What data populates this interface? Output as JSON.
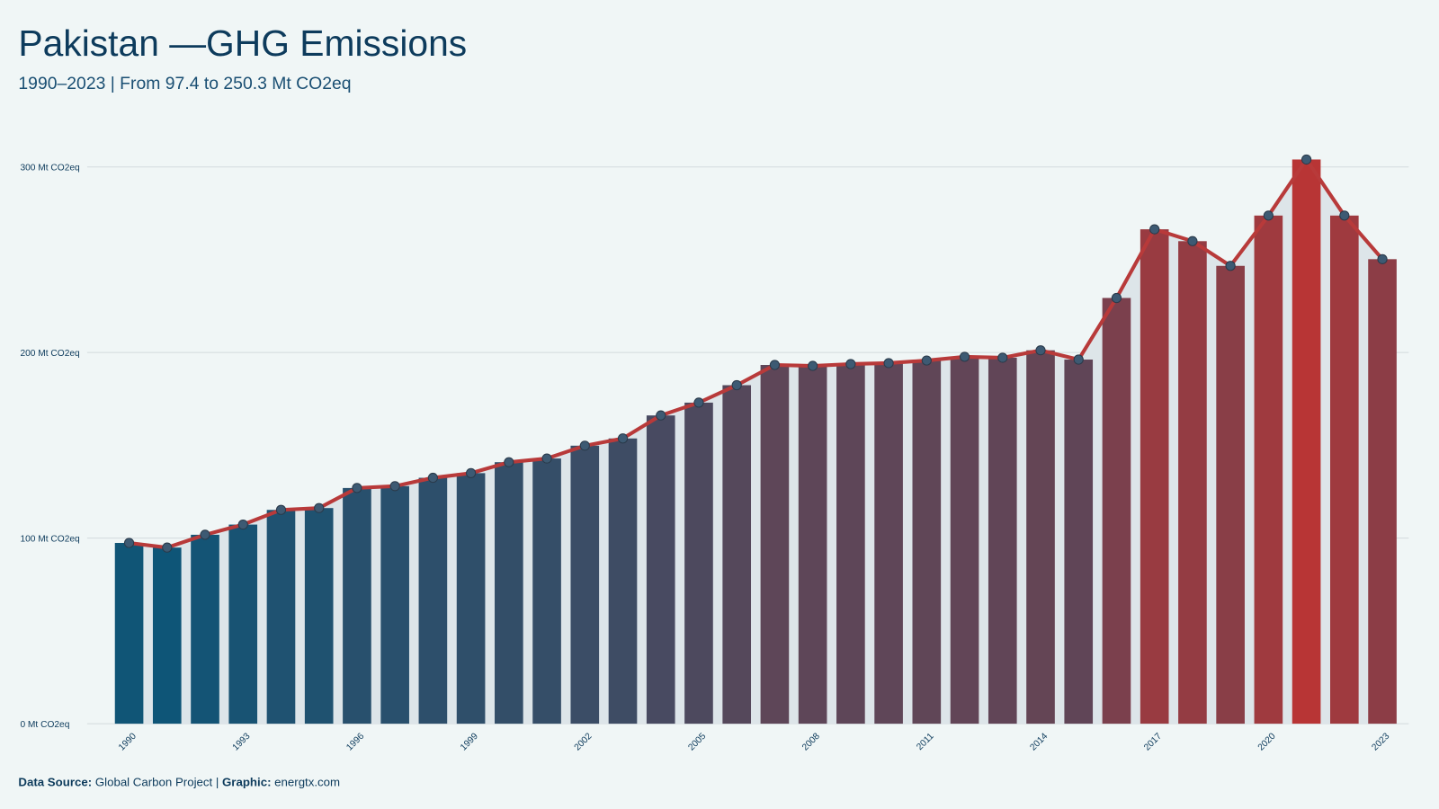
{
  "chart_data": {
    "type": "bar",
    "title": "Pakistan —GHG Emissions",
    "subtitle": "1990–2023 | From 97.4 to 250.3 Mt CO2eq",
    "categories": [
      "1990",
      null,
      null,
      "1993",
      null,
      null,
      "1996",
      null,
      null,
      "1999",
      null,
      null,
      "2002",
      null,
      null,
      "2005",
      null,
      null,
      "2008",
      null,
      null,
      "2011",
      null,
      null,
      "2014",
      null,
      null,
      "2017",
      null,
      null,
      "2020",
      null,
      null,
      "2023"
    ],
    "values": [
      97.4,
      94.9,
      101.8,
      107.3,
      115.2,
      116.2,
      127.0,
      128.0,
      132.5,
      135.0,
      140.9,
      142.9,
      149.8,
      153.7,
      166.1,
      173.0,
      182.4,
      193.3,
      192.8,
      193.8,
      194.3,
      195.7,
      197.7,
      197.2,
      201.2,
      196.2,
      229.4,
      266.4,
      260.0,
      246.7,
      273.8,
      304.0,
      273.8,
      250.3
    ],
    "colors": [
      "#0e5577",
      "#b83535"
    ],
    "line_color": "#b83a3a",
    "point_color": "#3d5a73",
    "area_color": "#dde5e9",
    "ylim": [
      0,
      300
    ],
    "yticks": [
      {
        "value": 0,
        "label": "0 Mt CO2eq"
      },
      {
        "value": 100,
        "label": "100 Mt CO2eq"
      },
      {
        "value": 200,
        "label": "200 Mt CO2eq"
      },
      {
        "value": 300,
        "label": "300 Mt CO2eq"
      }
    ],
    "grid": true,
    "source_label": "Data Source:",
    "source": "Global Carbon Project |",
    "credit_label": "Graphic:",
    "credit": "energtx.com"
  }
}
